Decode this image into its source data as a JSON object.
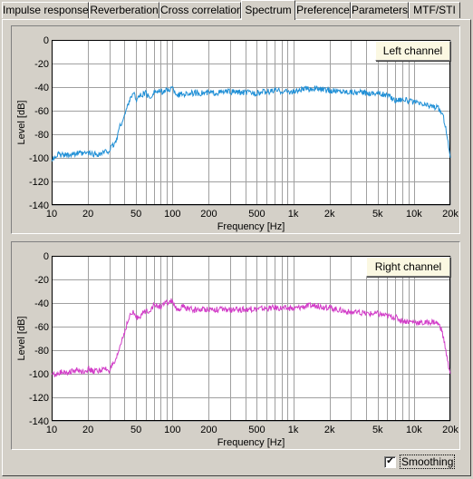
{
  "tabs": [
    {
      "label": "Impulse response"
    },
    {
      "label": "Reverberation"
    },
    {
      "label": "Cross correlation"
    },
    {
      "label": "Spectrum"
    },
    {
      "label": "Preference"
    },
    {
      "label": "Parameters"
    },
    {
      "label": "MTF/STI"
    }
  ],
  "active_tab": "Spectrum",
  "smoothing": {
    "label": "Smoothing",
    "checked": true,
    "check_glyph": "✔"
  },
  "chart_data": [
    {
      "type": "line",
      "legend_button": "Left channel",
      "xlabel": "Frequency [Hz]",
      "ylabel": "Level [dB]",
      "x_scale": "log",
      "xlim": [
        10,
        20000
      ],
      "ylim": [
        -140,
        0
      ],
      "x_tick_labels": [
        "10",
        "20",
        "50",
        "100",
        "200",
        "500",
        "1k",
        "2k",
        "5k",
        "10k",
        "20k"
      ],
      "y_tick_labels": [
        "0",
        "-20",
        "-40",
        "-60",
        "-80",
        "-100",
        "-120",
        "-140"
      ],
      "grid": true,
      "color": "#1f8fd6",
      "series": [
        {
          "x": [
            10,
            11,
            12,
            14,
            16,
            18,
            20,
            22,
            25,
            28,
            30,
            32,
            34,
            36,
            38,
            40,
            42,
            45,
            48,
            50,
            55,
            60,
            65,
            70,
            80,
            90,
            100,
            110,
            120,
            150,
            200,
            300,
            500,
            700,
            1000,
            1200,
            1500,
            2000,
            3000,
            4000,
            5000,
            6000,
            7000,
            8000,
            10000,
            12000,
            14000,
            15000,
            16000,
            17000,
            18000,
            19000,
            20000
          ],
          "y": [
            -103,
            -97,
            -98,
            -97,
            -96,
            -97,
            -96,
            -97,
            -97,
            -95,
            -94,
            -90,
            -87,
            -76,
            -70,
            -65,
            -58,
            -48,
            -46,
            -50,
            -47,
            -45,
            -50,
            -44,
            -44,
            -43,
            -41,
            -47,
            -46,
            -45,
            -45,
            -44,
            -45,
            -43,
            -44,
            -42,
            -41,
            -43,
            -44,
            -45,
            -45,
            -47,
            -51,
            -50,
            -53,
            -55,
            -56,
            -57,
            -58,
            -62,
            -70,
            -85,
            -100
          ]
        }
      ]
    },
    {
      "type": "line",
      "legend_button": "Right channel",
      "xlabel": "Frequency [Hz]",
      "ylabel": "Level [dB]",
      "x_scale": "log",
      "xlim": [
        10,
        20000
      ],
      "ylim": [
        -140,
        0
      ],
      "x_tick_labels": [
        "10",
        "20",
        "50",
        "100",
        "200",
        "500",
        "1k",
        "2k",
        "5k",
        "10k",
        "20k"
      ],
      "y_tick_labels": [
        "0",
        "-20",
        "-40",
        "-60",
        "-80",
        "-100",
        "-120",
        "-140"
      ],
      "grid": true,
      "color": "#d23cc8",
      "series": [
        {
          "x": [
            10,
            11,
            12,
            14,
            16,
            18,
            20,
            22,
            25,
            28,
            30,
            32,
            34,
            36,
            38,
            40,
            42,
            45,
            48,
            50,
            55,
            60,
            65,
            70,
            80,
            90,
            100,
            110,
            120,
            150,
            200,
            300,
            500,
            700,
            1000,
            1200,
            1500,
            2000,
            3000,
            4000,
            5000,
            6000,
            7000,
            8000,
            10000,
            12000,
            14000,
            15000,
            16000,
            17000,
            18000,
            19000,
            20000
          ],
          "y": [
            -100,
            -101,
            -98,
            -99,
            -97,
            -98,
            -96,
            -98,
            -97,
            -96,
            -97,
            -93,
            -90,
            -80,
            -72,
            -65,
            -58,
            -50,
            -48,
            -53,
            -50,
            -47,
            -46,
            -42,
            -43,
            -40,
            -38,
            -48,
            -43,
            -46,
            -45,
            -46,
            -45,
            -44,
            -45,
            -43,
            -42,
            -44,
            -48,
            -49,
            -49,
            -51,
            -52,
            -55,
            -56,
            -57,
            -56,
            -56,
            -58,
            -64,
            -75,
            -90,
            -100
          ]
        }
      ]
    }
  ]
}
